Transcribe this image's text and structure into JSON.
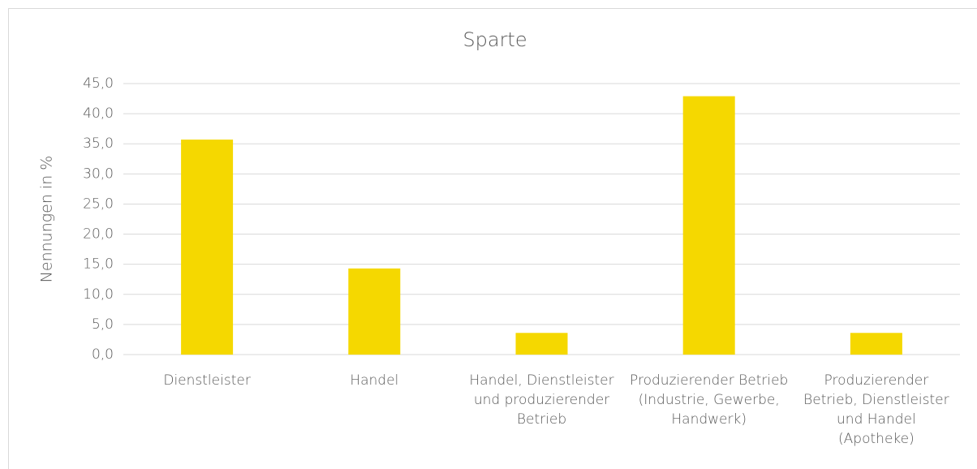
{
  "chart_data": {
    "type": "bar",
    "title": "Sparte",
    "y_label": "Nennungen in %",
    "categories": [
      "Dienstleister",
      "Handel",
      "Handel, Dienstleister und produzierender Betrieb",
      "Produzierender Betrieb (Industrie, Gewerbe, Handwerk)",
      "Produzierender Betrieb, Dienstleister und Handel (Apotheke)"
    ],
    "values": [
      35.7,
      14.3,
      3.6,
      42.9,
      3.6
    ],
    "color": "#f5d800",
    "ylim": [
      0,
      45
    ],
    "yticks": [
      {
        "value": 0,
        "label": "0,0"
      },
      {
        "value": 5,
        "label": "5,0"
      },
      {
        "value": 10,
        "label": "10,0"
      },
      {
        "value": 15,
        "label": "15,0"
      },
      {
        "value": 20,
        "label": "20,0"
      },
      {
        "value": 25,
        "label": "25,0"
      },
      {
        "value": 30,
        "label": "30,0"
      },
      {
        "value": 35,
        "label": "35,0"
      },
      {
        "value": 40,
        "label": "40,0"
      },
      {
        "value": 45,
        "label": "45,0"
      }
    ],
    "grid": true
  }
}
